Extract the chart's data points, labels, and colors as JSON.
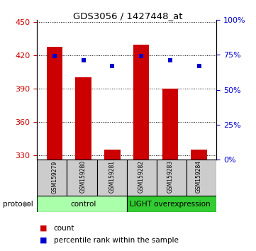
{
  "title": "GDS3056 / 1427448_at",
  "samples": [
    "GSM159279",
    "GSM159280",
    "GSM159281",
    "GSM159282",
    "GSM159283",
    "GSM159284"
  ],
  "counts": [
    428,
    400,
    335,
    430,
    390,
    335
  ],
  "percentile_ranks": [
    74,
    71,
    67,
    74,
    71,
    67
  ],
  "ylim_left": [
    326,
    452
  ],
  "yticks_left": [
    330,
    360,
    390,
    420,
    450
  ],
  "ylim_right": [
    0,
    100
  ],
  "yticks_right": [
    0,
    25,
    50,
    75,
    100
  ],
  "ytick_right_labels": [
    "0%",
    "25%",
    "50%",
    "75%",
    "100%"
  ],
  "bar_color": "#cc0000",
  "scatter_color": "#0000cc",
  "bar_width": 0.55,
  "legend_count_label": "count",
  "legend_percentile_label": "percentile rank within the sample",
  "protocol_label": "protocol",
  "background_color": "#ffffff",
  "plot_bg_color": "#ffffff",
  "tick_label_color_left": "#cc0000",
  "tick_label_color_right": "#0000cc",
  "ctrl_color_light": "#aaffaa",
  "ctrl_color_dark": "#33cc33",
  "sample_box_color": "#cccccc"
}
